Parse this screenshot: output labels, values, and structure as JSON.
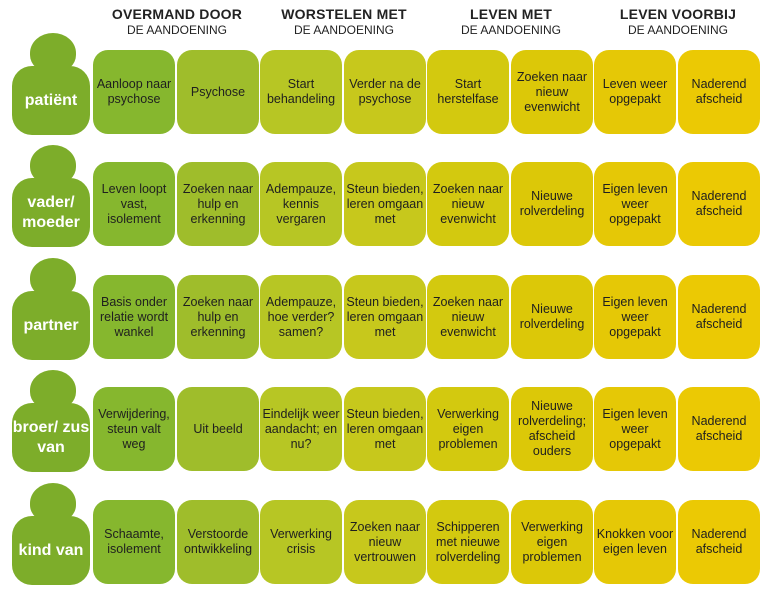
{
  "phases": [
    {
      "title": "OVERMAND DOOR",
      "sub": "DE AANDOENING"
    },
    {
      "title": "WORSTELEN MET",
      "sub": "DE AANDOENING"
    },
    {
      "title": "LEVEN MET",
      "sub": "DE AANDOENING"
    },
    {
      "title": "LEVEN VOORBIJ",
      "sub": "DE AANDOENING"
    }
  ],
  "rows": [
    {
      "label": "patiënt",
      "cells": [
        "Aanloop naar psychose",
        "Psychose",
        "Start behandeling",
        "Verder na de psychose",
        "Start herstelfase",
        "Zoeken naar nieuw evenwicht",
        "Leven weer opgepakt",
        "Naderend afscheid"
      ]
    },
    {
      "label": "vader/ moeder",
      "cells": [
        "Leven loopt vast, isolement",
        "Zoeken naar hulp en erkenning",
        "Adempauze, kennis vergaren",
        "Steun bieden, leren omgaan met",
        "Zoeken naar nieuw evenwicht",
        "Nieuwe rolverdeling",
        "Eigen leven weer opgepakt",
        "Naderend afscheid"
      ]
    },
    {
      "label": "partner",
      "cells": [
        "Basis onder relatie wordt wankel",
        "Zoeken naar hulp en erkenning",
        "Adempauze, hoe verder? samen?",
        "Steun bieden, leren omgaan met",
        "Zoeken naar nieuw evenwicht",
        "Nieuwe rolverdeling",
        "Eigen leven weer opgepakt",
        "Naderend afscheid"
      ]
    },
    {
      "label": "broer/ zus van",
      "cells": [
        "Verwijdering, steun valt weg",
        "Uit beeld",
        "Eindelijk weer aandacht; en nu?",
        "Steun bieden, leren omgaan met",
        "Verwerking eigen problemen",
        "Nieuwe rolverdeling; afscheid ouders",
        "Eigen leven weer opgepakt",
        "Naderend afscheid"
      ]
    },
    {
      "label": "kind van",
      "cells": [
        "Schaamte, isolement",
        "Verstoorde ontwikkeling",
        "Verwerking crisis",
        "Zoeken naar nieuw vertrouwen",
        "Schipperen met nieuwe rolverdeling",
        "Verwerking eigen problemen",
        "Knokken voor eigen leven",
        "Naderend afscheid"
      ]
    }
  ],
  "colors": {
    "person": "#7dad2a",
    "gradient": [
      "#86b72e",
      "#9fbd2b",
      "#b7c624",
      "#c7c81c",
      "#d3c90f",
      "#dcc808",
      "#e5c806",
      "#ebc904"
    ]
  }
}
